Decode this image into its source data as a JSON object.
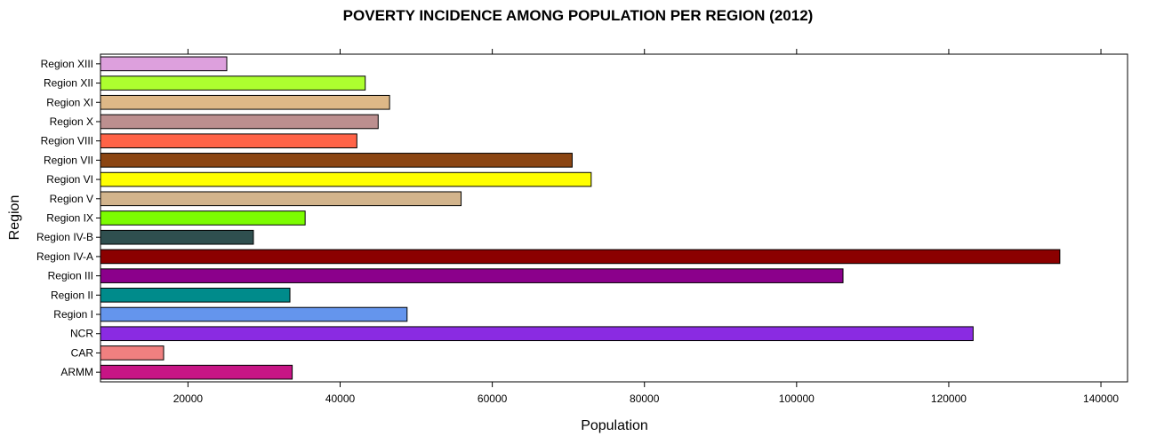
{
  "chart_data": {
    "type": "bar",
    "orientation": "horizontal",
    "title": "POVERTY INCIDENCE AMONG POPULATION PER REGION (2012)",
    "xlabel": "Population",
    "ylabel": "Region",
    "xlim": [
      8500,
      143500
    ],
    "xticks": [
      20000,
      40000,
      60000,
      80000,
      100000,
      120000,
      140000
    ],
    "categories": [
      "ARMM",
      "CAR",
      "NCR",
      "Region I",
      "Region II",
      "Region III",
      "Region IV-A",
      "Region IV-B",
      "Region IX",
      "Region V",
      "Region VI",
      "Region VII",
      "Region VIII",
      "Region X",
      "Region XI",
      "Region XII",
      "Region XIII"
    ],
    "values": [
      33700,
      16800,
      123200,
      48800,
      33400,
      106100,
      134600,
      28600,
      35400,
      55900,
      73000,
      70500,
      42200,
      45000,
      46500,
      43300,
      25100
    ],
    "colors": [
      "#c71585",
      "#f08080",
      "#8a2be2",
      "#6495ed",
      "#008b8b",
      "#8b008b",
      "#8b0000",
      "#2f4f4f",
      "#7cfc00",
      "#d2b48c",
      "#ffff00",
      "#8b4513",
      "#ff6347",
      "#bc8f8f",
      "#deb887",
      "#adff2f",
      "#dda0dd"
    ],
    "grid": false,
    "legend": "none"
  }
}
